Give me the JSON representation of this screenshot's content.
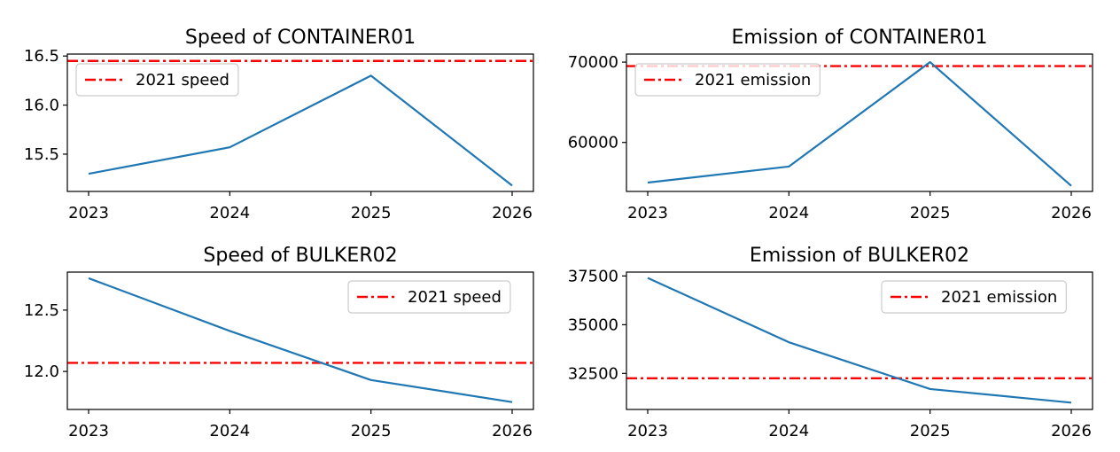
{
  "chart_data": [
    {
      "type": "line",
      "title": "Speed of CONTAINER01",
      "categories": [
        "2023",
        "2024",
        "2025",
        "2026"
      ],
      "series": [
        {
          "values": [
            15.3,
            15.57,
            16.3,
            15.18
          ],
          "color": "#1f77b4"
        }
      ],
      "reference_line": {
        "label": "2021 speed",
        "value": 16.45,
        "color": "#ff0000",
        "style": "dash-dot"
      },
      "ylim": [
        15.12,
        16.52
      ],
      "yticks": [
        15.5,
        16.0,
        16.5
      ],
      "ytick_labels": [
        "15.5",
        "16.0",
        "16.5"
      ],
      "legend_position": "upper-left",
      "grid": false
    },
    {
      "type": "line",
      "title": "Emission of CONTAINER01",
      "categories": [
        "2023",
        "2024",
        "2025",
        "2026"
      ],
      "series": [
        {
          "values": [
            55000,
            57000,
            70000,
            54600
          ],
          "color": "#1f77b4"
        }
      ],
      "reference_line": {
        "label": "2021 emission",
        "value": 69500,
        "color": "#ff0000",
        "style": "dash-dot"
      },
      "ylim": [
        53900,
        71000
      ],
      "yticks": [
        60000,
        70000
      ],
      "ytick_labels": [
        "60000",
        "70000"
      ],
      "legend_position": "upper-left",
      "grid": false
    },
    {
      "type": "line",
      "title": "Speed of BULKER02",
      "categories": [
        "2023",
        "2024",
        "2025",
        "2026"
      ],
      "series": [
        {
          "values": [
            12.76,
            12.33,
            11.93,
            11.75
          ],
          "color": "#1f77b4"
        }
      ],
      "reference_line": {
        "label": "2021 speed",
        "value": 12.07,
        "color": "#ff0000",
        "style": "dash-dot"
      },
      "ylim": [
        11.69,
        12.81
      ],
      "yticks": [
        12.0,
        12.5
      ],
      "ytick_labels": [
        "12.0",
        "12.5"
      ],
      "legend_position": "upper-right",
      "grid": false
    },
    {
      "type": "line",
      "title": "Emission of BULKER02",
      "categories": [
        "2023",
        "2024",
        "2025",
        "2026"
      ],
      "series": [
        {
          "values": [
            37400,
            34100,
            31700,
            31000
          ],
          "color": "#1f77b4"
        }
      ],
      "reference_line": {
        "label": "2021 emission",
        "value": 32250,
        "color": "#ff0000",
        "style": "dash-dot"
      },
      "ylim": [
        30650,
        37700
      ],
      "yticks": [
        32500,
        35000,
        37500
      ],
      "ytick_labels": [
        "32500",
        "35000",
        "37500"
      ],
      "legend_position": "upper-right",
      "grid": false
    }
  ]
}
